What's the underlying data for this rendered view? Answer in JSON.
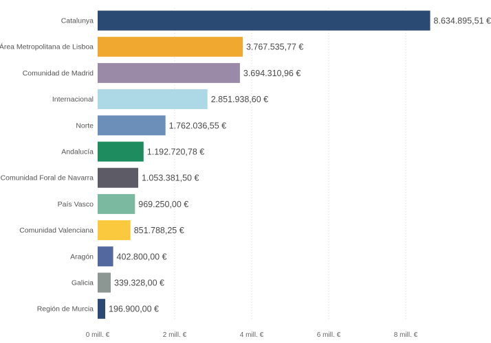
{
  "chart_data": {
    "type": "bar",
    "orientation": "horizontal",
    "categories": [
      "Catalunya",
      "Área Metropolitana de Lisboa",
      "Comunidad de Madrid",
      "Internacional",
      "Norte",
      "Andalucía",
      "Comunidad Foral de Navarra",
      "País Vasco",
      "Comunidad Valenciana",
      "Aragón",
      "Galicia",
      "Región de Murcia"
    ],
    "values": [
      8634895.51,
      3767535.77,
      3694310.96,
      2851938.6,
      1762036.55,
      1192720.78,
      1053381.5,
      969250.0,
      851788.25,
      402800.0,
      339328.0,
      196900.0
    ],
    "value_labels": [
      "8.634.895,51 €",
      "3.767.535,77 €",
      "3.694.310,96 €",
      "2.851.938,60 €",
      "1.762.036,55 €",
      "1.192.720,78 €",
      "1.053.381,50 €",
      "969.250,00 €",
      "851.788,25 €",
      "402.800,00 €",
      "339.328,00 €",
      "196.900,00 €"
    ],
    "colors": [
      "#2b4a73",
      "#f0a830",
      "#9a8aa8",
      "#add8e6",
      "#6b8fb8",
      "#1e8c5e",
      "#5c5b66",
      "#7bbaa0",
      "#fbc93d",
      "#5468a0",
      "#8c9693",
      "#2b4a73"
    ],
    "xaxis": {
      "ticks": [
        0,
        2000000,
        4000000,
        6000000,
        8000000
      ],
      "tick_labels": [
        "0 mill. €",
        "2 mill. €",
        "4 mill. €",
        "6 mill. €",
        "8 mill. €"
      ],
      "range": [
        0,
        8600000
      ]
    },
    "grid": true,
    "title": "",
    "xlabel": "",
    "ylabel": ""
  }
}
